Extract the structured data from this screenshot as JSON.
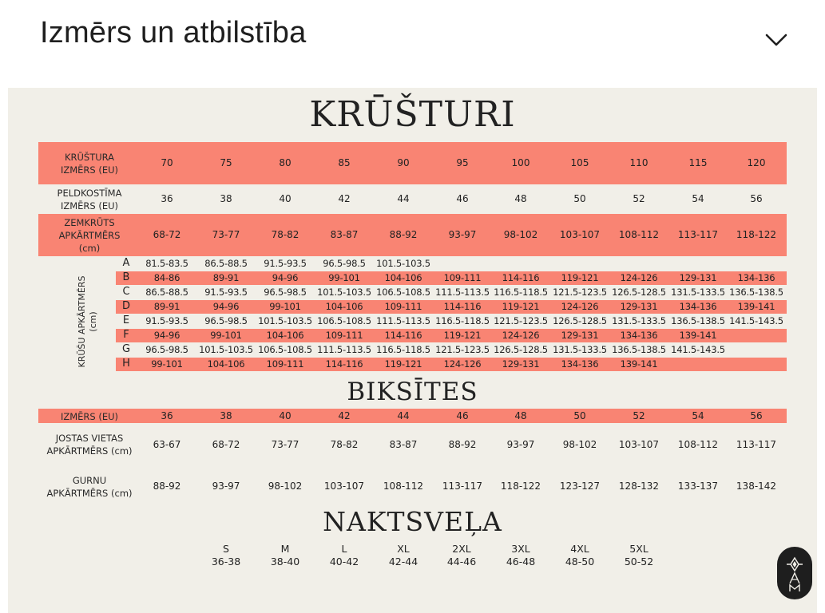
{
  "header": {
    "title": "Izmērs un atbilstība"
  },
  "bras": {
    "title": "KRŪŠTURI",
    "size_label": "KRŪŠTURA\nIZMĒRS (EU)",
    "sizes": [
      "70",
      "75",
      "80",
      "85",
      "90",
      "95",
      "100",
      "105",
      "110",
      "115",
      "120"
    ],
    "swim_label": "PELDKOSTĪMA\nIZMĒRS (EU)",
    "swim_sizes": [
      "36",
      "38",
      "40",
      "42",
      "44",
      "46",
      "48",
      "50",
      "52",
      "54",
      "56"
    ],
    "underbust_label": "ZEMKRŪTS\nAPKĀRTMĒRS\n(cm)",
    "underbust": [
      "68-72",
      "73-77",
      "78-82",
      "83-87",
      "88-92",
      "93-97",
      "98-102",
      "103-107",
      "108-112",
      "113-117",
      "118-122"
    ],
    "bust_label": "KRŪŠU APKĀRTMĒRS\n(cm)",
    "cups": [
      {
        "cup": "A",
        "values": [
          "81.5-83.5",
          "86.5-88.5",
          "91.5-93.5",
          "96.5-98.5",
          "101.5-103.5"
        ]
      },
      {
        "cup": "B",
        "values": [
          "84-86",
          "89-91",
          "94-96",
          "99-101",
          "104-106",
          "109-111",
          "114-116",
          "119-121",
          "124-126",
          "129-131",
          "134-136"
        ]
      },
      {
        "cup": "C",
        "values": [
          "86.5-88.5",
          "91.5-93.5",
          "96.5-98.5",
          "101.5-103.5",
          "106.5-108.5",
          "111.5-113.5",
          "116.5-118.5",
          "121.5-123.5",
          "126.5-128.5",
          "131.5-133.5",
          "136.5-138.5"
        ]
      },
      {
        "cup": "D",
        "values": [
          "89-91",
          "94-96",
          "99-101",
          "104-106",
          "109-111",
          "114-116",
          "119-121",
          "124-126",
          "129-131",
          "134-136",
          "139-141"
        ]
      },
      {
        "cup": "E",
        "values": [
          "91.5-93.5",
          "96.5-98.5",
          "101.5-103.5",
          "106.5-108.5",
          "111.5-113.5",
          "116.5-118.5",
          "121.5-123.5",
          "126.5-128.5",
          "131.5-133.5",
          "136.5-138.5",
          "141.5-143.5"
        ]
      },
      {
        "cup": "F",
        "values": [
          "94-96",
          "99-101",
          "104-106",
          "109-111",
          "114-116",
          "119-121",
          "124-126",
          "129-131",
          "134-136",
          "139-141"
        ]
      },
      {
        "cup": "G",
        "values": [
          "96.5-98.5",
          "101.5-103.5",
          "106.5-108.5",
          "111.5-113.5",
          "116.5-118.5",
          "121.5-123.5",
          "126.5-128.5",
          "131.5-133.5",
          "136.5-138.5",
          "141.5-143.5"
        ]
      },
      {
        "cup": "H",
        "values": [
          "99-101",
          "104-106",
          "109-111",
          "114-116",
          "119-121",
          "124-126",
          "129-131",
          "134-136",
          "139-141"
        ]
      }
    ]
  },
  "briefs": {
    "title": "BIKSĪTES",
    "size_label": "IZMĒRS (EU)",
    "sizes": [
      "36",
      "38",
      "40",
      "42",
      "44",
      "46",
      "48",
      "50",
      "52",
      "54",
      "56"
    ],
    "waist_label": "JOSTAS VIETAS\nAPKĀRTMĒRS (cm)",
    "waist": [
      "63-67",
      "68-72",
      "73-77",
      "78-82",
      "83-87",
      "88-92",
      "93-97",
      "98-102",
      "103-107",
      "108-112",
      "113-117"
    ],
    "hip_label": "GURNU\nAPKĀRTMĒRS (cm)",
    "hips": [
      "88-92",
      "93-97",
      "98-102",
      "103-107",
      "108-112",
      "113-117",
      "118-122",
      "123-127",
      "128-132",
      "133-137",
      "138-142"
    ]
  },
  "nightwear": {
    "title": "NAKTSVEĻA",
    "sizes": [
      {
        "label": "S",
        "range": "36-38"
      },
      {
        "label": "M",
        "range": "38-40"
      },
      {
        "label": "L",
        "range": "40-42"
      },
      {
        "label": "XL",
        "range": "42-44"
      },
      {
        "label": "2XL",
        "range": "44-46"
      },
      {
        "label": "3XL",
        "range": "46-48"
      },
      {
        "label": "4XL",
        "range": "48-50"
      },
      {
        "label": "5XL",
        "range": "50-52"
      }
    ]
  },
  "colors": {
    "band": "#f98473",
    "panel": "#f1efe8",
    "badge": "#1e1e1e"
  },
  "icons": {
    "chevron": "chevron-down-icon",
    "logo": "brand-logo-icon"
  }
}
